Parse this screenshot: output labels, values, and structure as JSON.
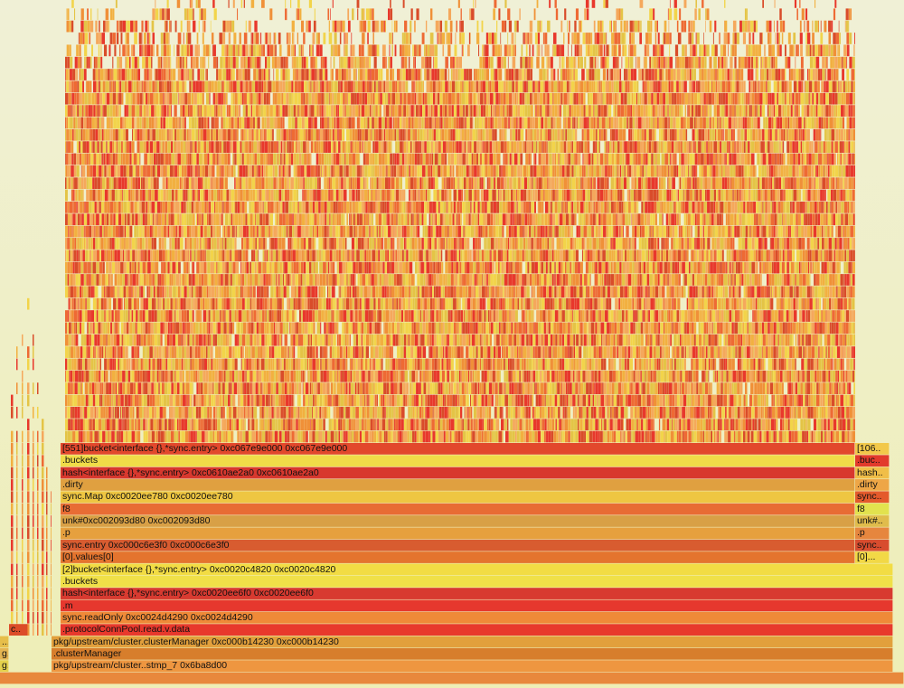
{
  "chart_data": {
    "type": "flamegraph",
    "title": "",
    "orientation": "bottom-up",
    "total_samples": 1000,
    "frames": [
      {
        "depth": 0,
        "start": 0,
        "width": 1000,
        "label": "",
        "color": "#e8883c"
      },
      {
        "depth": 1,
        "start": 0,
        "width": 10,
        "label": "g..",
        "color": "#e4d24c"
      },
      {
        "depth": 1,
        "start": 57,
        "width": 931,
        "label": "pkg/upstream/cluster..stmp_7 0x6ba8d00",
        "color": "#ee9640"
      },
      {
        "depth": 2,
        "start": 0,
        "width": 10,
        "label": "g..",
        "color": "#e4b452"
      },
      {
        "depth": 2,
        "start": 57,
        "width": 931,
        "label": ".clusterManager",
        "color": "#d77e2c"
      },
      {
        "depth": 3,
        "start": 0,
        "width": 10,
        "label": "...",
        "color": "#e6be4a"
      },
      {
        "depth": 3,
        "start": 57,
        "width": 931,
        "label": "pkg/upstream/cluster.clusterManager 0xc000b14230 0xc000b14230",
        "color": "#e2a03c"
      },
      {
        "depth": 4,
        "start": 10,
        "width": 21,
        "label": "c..",
        "color": "#dc4c28"
      },
      {
        "depth": 4,
        "start": 67,
        "width": 921,
        "label": ".protocolConnPool.read.v.data",
        "color": "#e8392c"
      },
      {
        "depth": 5,
        "start": 67,
        "width": 921,
        "label": "sync.readOnly 0xc0024d4290 0xc0024d4290",
        "color": "#ef8a38"
      },
      {
        "depth": 6,
        "start": 67,
        "width": 921,
        "label": ".m",
        "color": "#e6382e"
      },
      {
        "depth": 7,
        "start": 67,
        "width": 921,
        "label": "hash<interface {},*sync.entry> 0xc0020ee6f0 0xc0020ee6f0",
        "color": "#d83a30"
      },
      {
        "depth": 8,
        "start": 67,
        "width": 921,
        "label": ".buckets",
        "color": "#f0e048"
      },
      {
        "depth": 9,
        "start": 67,
        "width": 921,
        "label": "[2]bucket<interface {},*sync.entry> 0xc0020c4820 0xc0020c4820",
        "color": "#f2dc44"
      },
      {
        "depth": 10,
        "start": 67,
        "width": 879,
        "label": "[0].values[0]",
        "color": "#e4742e"
      },
      {
        "depth": 10,
        "start": 946,
        "width": 38,
        "label": "[0]...",
        "color": "#f2d846"
      },
      {
        "depth": 11,
        "start": 67,
        "width": 879,
        "label": "sync.entry 0xc000c6e3f0 0xc000c6e3f0",
        "color": "#d85c30"
      },
      {
        "depth": 11,
        "start": 946,
        "width": 38,
        "label": "sync..",
        "color": "#d84c2e"
      },
      {
        "depth": 12,
        "start": 67,
        "width": 879,
        "label": ".p",
        "color": "#e6a03e"
      },
      {
        "depth": 12,
        "start": 946,
        "width": 38,
        "label": ".p",
        "color": "#e6863e"
      },
      {
        "depth": 13,
        "start": 67,
        "width": 879,
        "label": "unk#0xc002093d80 0xc002093d80",
        "color": "#d8a046"
      },
      {
        "depth": 13,
        "start": 946,
        "width": 38,
        "label": "unk#..",
        "color": "#e0bc4c"
      },
      {
        "depth": 14,
        "start": 67,
        "width": 879,
        "label": "f8",
        "color": "#e86c34"
      },
      {
        "depth": 14,
        "start": 946,
        "width": 38,
        "label": "f8",
        "color": "#e2e24e"
      },
      {
        "depth": 15,
        "start": 67,
        "width": 879,
        "label": "sync.Map 0xc0020ee780 0xc0020ee780",
        "color": "#eec642"
      },
      {
        "depth": 15,
        "start": 946,
        "width": 38,
        "label": "sync..",
        "color": "#e45a2c"
      },
      {
        "depth": 16,
        "start": 67,
        "width": 879,
        "label": ".dirty",
        "color": "#e0a040"
      },
      {
        "depth": 16,
        "start": 946,
        "width": 38,
        "label": ".dirty",
        "color": "#eea646"
      },
      {
        "depth": 17,
        "start": 67,
        "width": 879,
        "label": "hash<interface {},*sync.entry> 0xc0610ae2a0 0xc0610ae2a0",
        "color": "#d8382e"
      },
      {
        "depth": 17,
        "start": 946,
        "width": 38,
        "label": "hash..",
        "color": "#f0be48"
      },
      {
        "depth": 18,
        "start": 67,
        "width": 879,
        "label": ".buckets",
        "color": "#f0dc48"
      },
      {
        "depth": 18,
        "start": 946,
        "width": 38,
        "label": ".buc..",
        "color": "#e23a2c"
      },
      {
        "depth": 19,
        "start": 67,
        "width": 879,
        "label": "[551]bucket<interface {},*sync.entry> 0xc067e9e000 0xc067e9e000",
        "color": "#e2482c"
      },
      {
        "depth": 19,
        "start": 946,
        "width": 38,
        "label": "[106..",
        "color": "#f2c84a"
      }
    ],
    "dense_region": {
      "description": "thousands of unlabelled narrow child frames above the [551]bucket frame",
      "start": 72,
      "width": 874,
      "min_depth": 20,
      "max_depth": 56
    },
    "palette": [
      "#e8382c",
      "#ee6a34",
      "#f09038",
      "#f2b040",
      "#f2d44a",
      "#e4c446",
      "#d94c2a",
      "#f5a85c"
    ]
  }
}
